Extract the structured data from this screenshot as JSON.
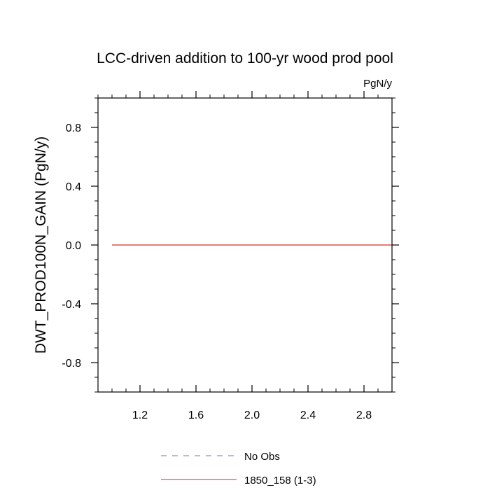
{
  "chart_data": {
    "type": "line",
    "title": "LCC-driven addition to 100-yr wood prod pool",
    "units_label": "PgN/y",
    "ylabel": "DWT_PROD100N_GAIN  (PgN/y)",
    "xlabel": "",
    "xlim": [
      0.9,
      3.0
    ],
    "ylim": [
      -1.0,
      1.0
    ],
    "x_ticks": [
      1.2,
      1.6,
      2.0,
      2.4,
      2.8
    ],
    "x_tick_labels": [
      "1.2",
      "1.6",
      "2.0",
      "2.4",
      "2.8"
    ],
    "y_ticks": [
      0.8,
      0.4,
      0.0,
      -0.4,
      -0.8
    ],
    "y_tick_labels": [
      "0.8",
      "0.4",
      "0.0",
      "-0.4",
      "-0.8"
    ],
    "grid": false,
    "legend_position": "bottom-center",
    "series": [
      {
        "name": "No Obs",
        "x": [],
        "y": [],
        "color": "#8a8ae6",
        "dash": "dashed"
      },
      {
        "name": "1850_158 (1-3)",
        "x": [
          1.0,
          3.0
        ],
        "y": [
          0.0,
          0.0
        ],
        "color": "#e05050",
        "dash": "solid"
      }
    ]
  }
}
